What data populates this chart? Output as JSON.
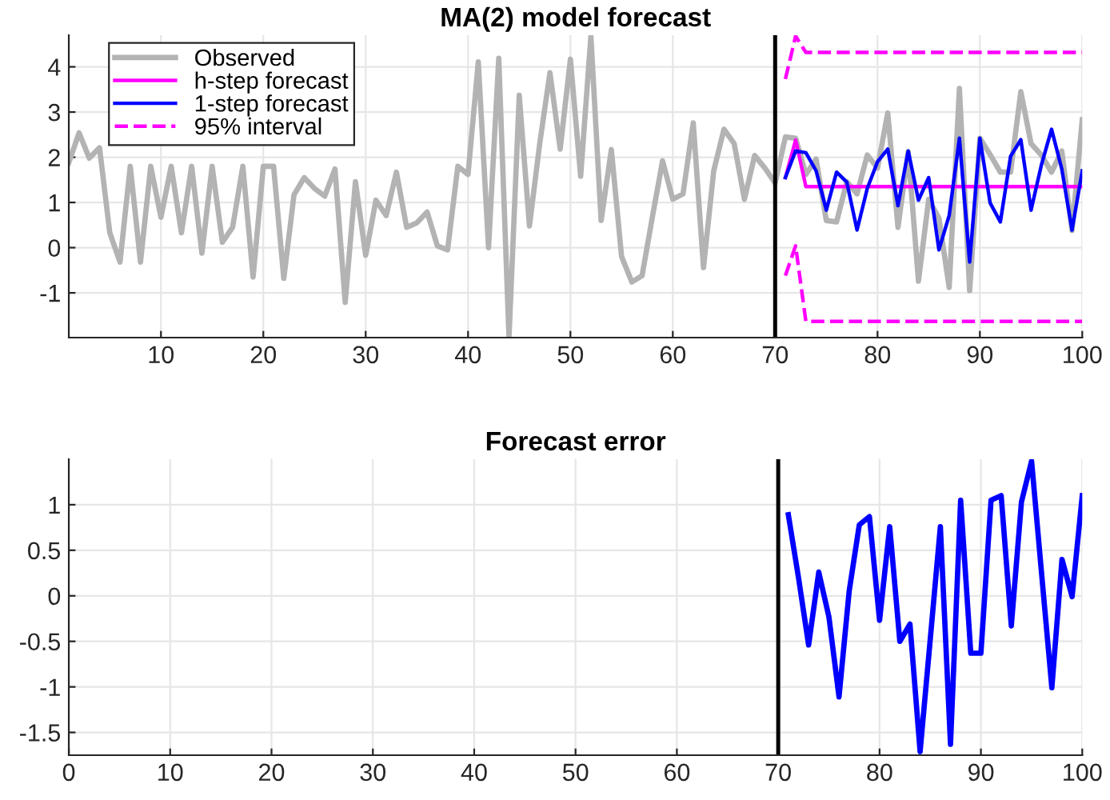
{
  "chart_data": [
    {
      "type": "line",
      "title": "MA(2) model forecast",
      "xlim": [
        1,
        100
      ],
      "ylim": [
        -1.99,
        4.7
      ],
      "xticks": [
        10,
        20,
        30,
        40,
        50,
        60,
        70,
        80,
        90,
        100
      ],
      "yticks": [
        -1,
        0,
        1,
        2,
        3,
        4
      ],
      "grid": true,
      "legend": "top left",
      "series": [
        {
          "name": "Observed",
          "color": "#b3b3b3",
          "line_style": "solid",
          "x": [
            1,
            2,
            3,
            4,
            5,
            6,
            7,
            8,
            9,
            10,
            11,
            12,
            13,
            14,
            15,
            16,
            17,
            18,
            19,
            20,
            21,
            22,
            23,
            24,
            25,
            26,
            27,
            28,
            29,
            30,
            31,
            32,
            33,
            34,
            35,
            36,
            37,
            38,
            39,
            40,
            41,
            42,
            43,
            44,
            45,
            46,
            47,
            48,
            49,
            50,
            51,
            52,
            53,
            54,
            55,
            56,
            57,
            58,
            59,
            60,
            61,
            62,
            63,
            64,
            65,
            66,
            67,
            68,
            69,
            70,
            71,
            72,
            73,
            74,
            75,
            76,
            77,
            78,
            79,
            80,
            81,
            82,
            83,
            84,
            85,
            86,
            87,
            88,
            89,
            90,
            91,
            92,
            93,
            94,
            95,
            96,
            97,
            98,
            99,
            100
          ],
          "values": [
            1.88,
            2.54,
            1.98,
            2.21,
            0.33,
            -0.32,
            1.8,
            -0.32,
            1.8,
            0.67,
            1.8,
            0.33,
            1.8,
            -0.12,
            1.8,
            0.12,
            0.45,
            1.8,
            -0.65,
            1.8,
            1.8,
            -0.68,
            1.17,
            1.55,
            1.31,
            1.14,
            1.74,
            -1.21,
            1.46,
            -0.17,
            1.05,
            0.71,
            1.67,
            0.45,
            0.55,
            0.79,
            0.04,
            -0.05,
            1.8,
            1.62,
            4.11,
            0.0,
            4.19,
            -1.99,
            3.37,
            0.48,
            2.3,
            3.87,
            2.18,
            4.17,
            1.58,
            4.68,
            0.6,
            2.17,
            -0.2,
            -0.76,
            -0.62,
            0.67,
            1.92,
            1.07,
            1.19,
            2.76,
            -0.44,
            1.7,
            2.62,
            2.3,
            1.07,
            2.04,
            1.76,
            1.43,
            2.45,
            2.42,
            1.62,
            1.96,
            0.6,
            0.57,
            1.46,
            1.19,
            2.05,
            1.76,
            2.98,
            0.45,
            2.12,
            -0.74,
            1.07,
            0.65,
            -0.88,
            3.52,
            -0.95,
            2.42,
            2.06,
            1.67,
            1.67,
            3.45,
            2.3,
            2.05,
            1.67,
            2.14,
            0.38,
            2.83
          ]
        },
        {
          "name": "h-step forecast",
          "color": "#ff00ff",
          "line_style": "solid",
          "x": [
            71,
            72,
            73,
            74,
            75,
            76,
            77,
            78,
            79,
            80,
            81,
            82,
            83,
            84,
            85,
            86,
            87,
            88,
            89,
            90,
            91,
            92,
            93,
            94,
            95,
            96,
            97,
            98,
            99,
            100
          ],
          "values": [
            1.55,
            2.38,
            1.35,
            1.35,
            1.35,
            1.35,
            1.35,
            1.35,
            1.35,
            1.35,
            1.35,
            1.35,
            1.35,
            1.35,
            1.35,
            1.35,
            1.35,
            1.35,
            1.35,
            1.35,
            1.35,
            1.35,
            1.35,
            1.35,
            1.35,
            1.35,
            1.35,
            1.35,
            1.35,
            1.35
          ]
        },
        {
          "name": "1-step forecast",
          "color": "#0000ff",
          "line_style": "solid",
          "x": [
            71,
            72,
            73,
            74,
            75,
            76,
            77,
            78,
            79,
            80,
            81,
            82,
            83,
            84,
            85,
            86,
            87,
            88,
            89,
            90,
            91,
            92,
            93,
            94,
            95,
            96,
            97,
            98,
            99,
            100
          ],
          "values": [
            1.55,
            2.14,
            2.1,
            1.7,
            0.83,
            1.67,
            1.45,
            0.39,
            1.31,
            1.9,
            2.18,
            0.93,
            2.14,
            1.05,
            1.55,
            -0.05,
            0.71,
            2.42,
            -0.32,
            2.42,
            0.99,
            0.57,
            2.02,
            2.39,
            0.83,
            1.82,
            2.62,
            1.74,
            0.39,
            1.7
          ]
        },
        {
          "name": "95% interval",
          "color": "#ff00ff",
          "line_style": "dashed",
          "x": [
            71,
            72,
            73,
            74,
            75,
            76,
            77,
            78,
            79,
            80,
            81,
            82,
            83,
            84,
            85,
            86,
            87,
            88,
            89,
            90,
            91,
            92,
            93,
            94,
            95,
            96,
            97,
            98,
            99,
            100
          ],
          "values": [
            3.73,
            4.68,
            4.32,
            4.32,
            4.32,
            4.32,
            4.32,
            4.32,
            4.32,
            4.32,
            4.32,
            4.32,
            4.32,
            4.32,
            4.32,
            4.32,
            4.32,
            4.32,
            4.32,
            4.32,
            4.32,
            4.32,
            4.32,
            4.32,
            4.32,
            4.32,
            4.32,
            4.32,
            4.32,
            4.32
          ]
        },
        {
          "color": "#ff00ff",
          "line_style": "dashed",
          "x": [
            71,
            72,
            73,
            74,
            75,
            76,
            77,
            78,
            79,
            80,
            81,
            82,
            83,
            84,
            85,
            86,
            87,
            88,
            89,
            90,
            91,
            92,
            93,
            94,
            95,
            96,
            97,
            98,
            99,
            100
          ],
          "values": [
            -0.62,
            0.04,
            -1.63,
            -1.63,
            -1.63,
            -1.63,
            -1.63,
            -1.63,
            -1.63,
            -1.63,
            -1.63,
            -1.63,
            -1.63,
            -1.63,
            -1.63,
            -1.63,
            -1.63,
            -1.63,
            -1.63,
            -1.63,
            -1.63,
            -1.63,
            -1.63,
            -1.63,
            -1.63,
            -1.63,
            -1.63,
            -1.63,
            -1.63,
            -1.63
          ]
        }
      ],
      "ref_lines": [
        {
          "axis": "x",
          "value": 70,
          "color": "#000000"
        }
      ]
    },
    {
      "type": "line",
      "title": "Forecast error",
      "xlim": [
        0,
        100
      ],
      "ylim": [
        -1.75,
        1.5
      ],
      "xticks": [
        0,
        10,
        20,
        30,
        40,
        50,
        60,
        70,
        80,
        90,
        100
      ],
      "yticks": [
        -1.5,
        -1,
        -0.5,
        0,
        0.5,
        1
      ],
      "grid": true,
      "series": [
        {
          "color": "#0000ff",
          "line_style": "solid",
          "x": [
            71,
            72,
            73,
            74,
            75,
            76,
            77,
            78,
            79,
            80,
            81,
            82,
            83,
            84,
            85,
            86,
            87,
            88,
            89,
            90,
            91,
            92,
            93,
            94,
            95,
            96,
            97,
            98,
            99,
            100
          ],
          "values": [
            0.89,
            0.2,
            -0.54,
            0.26,
            -0.23,
            -1.11,
            0.05,
            0.78,
            0.87,
            -0.27,
            0.76,
            -0.5,
            -0.31,
            -1.71,
            -0.48,
            0.76,
            -1.63,
            1.05,
            -0.63,
            -0.63,
            1.05,
            1.1,
            -0.33,
            1.03,
            1.48,
            0.23,
            -1.01,
            0.4,
            -0.01,
            1.1
          ]
        }
      ],
      "ref_lines": [
        {
          "axis": "x",
          "value": 70.0,
          "color": "#000000"
        }
      ]
    }
  ]
}
